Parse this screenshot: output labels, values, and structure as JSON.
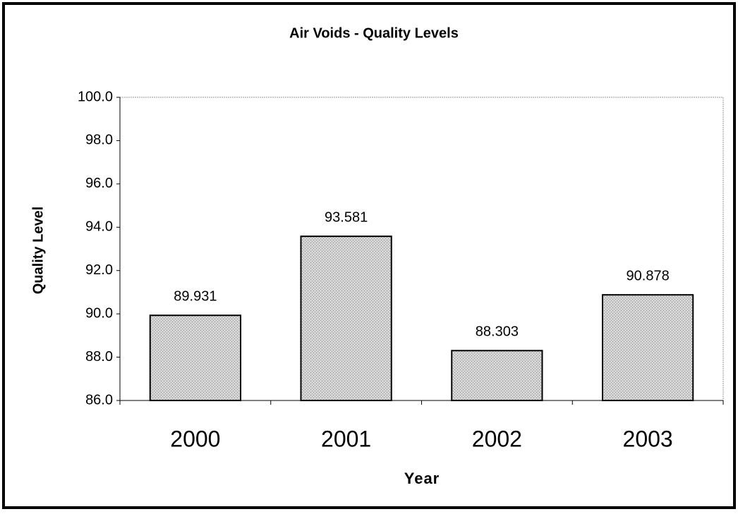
{
  "chart_data": {
    "type": "bar",
    "title": "Air Voids - Quality Levels",
    "x_label": "Year",
    "y_label": "Quality Level",
    "categories": [
      "2000",
      "2001",
      "2002",
      "2003"
    ],
    "values": [
      89.931,
      93.581,
      88.303,
      90.878
    ],
    "color": "#c8c8c8",
    "ylim": [
      86,
      100
    ],
    "yticks": [
      {
        "value": 86,
        "label": "86.0"
      },
      {
        "value": 88,
        "label": "88.0"
      },
      {
        "value": 90,
        "label": "90.0"
      },
      {
        "value": 92,
        "label": "92.0"
      },
      {
        "value": 94,
        "label": "94.0"
      },
      {
        "value": 96,
        "label": "96.0"
      },
      {
        "value": 98,
        "label": "98.0"
      },
      {
        "value": 100,
        "label": "100.0"
      }
    ],
    "grid": false
  }
}
